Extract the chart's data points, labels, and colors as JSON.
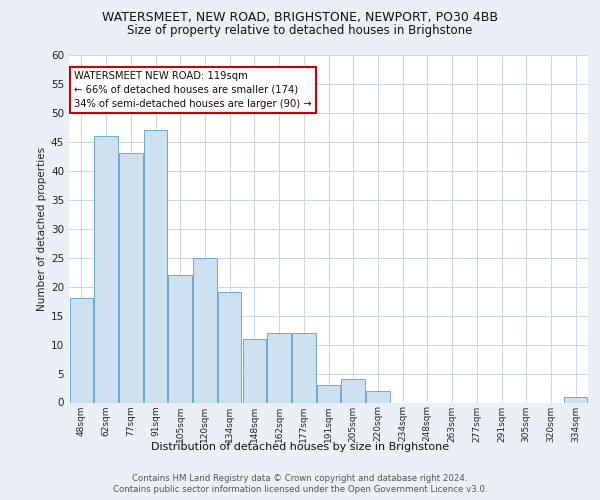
{
  "title1": "WATERSMEET, NEW ROAD, BRIGHSTONE, NEWPORT, PO30 4BB",
  "title2": "Size of property relative to detached houses in Brighstone",
  "xlabel": "Distribution of detached houses by size in Brighstone",
  "ylabel": "Number of detached properties",
  "categories": [
    "48sqm",
    "62sqm",
    "77sqm",
    "91sqm",
    "105sqm",
    "120sqm",
    "134sqm",
    "148sqm",
    "162sqm",
    "177sqm",
    "191sqm",
    "205sqm",
    "220sqm",
    "234sqm",
    "248sqm",
    "263sqm",
    "277sqm",
    "291sqm",
    "305sqm",
    "320sqm",
    "334sqm"
  ],
  "values": [
    18,
    46,
    43,
    47,
    22,
    25,
    19,
    11,
    12,
    12,
    3,
    4,
    2,
    0,
    0,
    0,
    0,
    0,
    0,
    0,
    1
  ],
  "bar_color": "#cce0f0",
  "bar_edge_color": "#6aaad4",
  "annotation_text": "WATERSMEET NEW ROAD: 119sqm\n← 66% of detached houses are smaller (174)\n34% of semi-detached houses are larger (90) →",
  "annotation_box_color": "#ffffff",
  "annotation_box_edge_color": "#cc0000",
  "ylim": [
    0,
    60
  ],
  "yticks": [
    0,
    5,
    10,
    15,
    20,
    25,
    30,
    35,
    40,
    45,
    50,
    55,
    60
  ],
  "footer1": "Contains HM Land Registry data © Crown copyright and database right 2024.",
  "footer2": "Contains public sector information licensed under the Open Government Licence v3.0.",
  "bg_color": "#eaf0f6",
  "plot_bg_color": "#ffffff",
  "grid_color": "#c8d8e8"
}
